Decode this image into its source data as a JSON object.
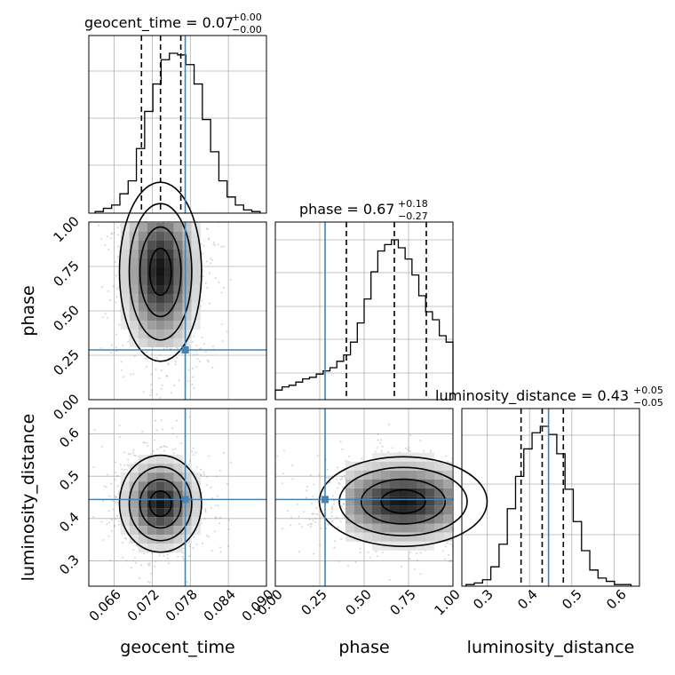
{
  "chart_data": {
    "type": "corner",
    "parameters": [
      "geocent_time",
      "phase",
      "luminosity_distance"
    ],
    "titles": [
      {
        "text": "geocent_time = 0.07",
        "plus": "+0.00",
        "minus": "−0.00"
      },
      {
        "text": "phase = 0.67",
        "plus": "+0.18",
        "minus": "−0.27"
      },
      {
        "text": "luminosity_distance = 0.43",
        "plus": "+0.05",
        "minus": "−0.05"
      }
    ],
    "ranges": {
      "geocent_time": [
        0.062,
        0.09
      ],
      "phase": [
        0.0,
        1.0
      ],
      "luminosity_distance": [
        0.24,
        0.66
      ]
    },
    "ticks": {
      "geocent_time": [
        "0.066",
        "0.072",
        "0.078",
        "0.084",
        "0.090"
      ],
      "phase_x": [
        "0.00",
        "0.25",
        "0.50",
        "0.75",
        "1.00"
      ],
      "phase_y": [
        "0.00",
        "0.25",
        "0.50",
        "0.75",
        "1.00"
      ],
      "luminosity_distance_x": [
        "0.3",
        "0.4",
        "0.5",
        "0.6"
      ],
      "luminosity_distance_y": [
        "0.3",
        "0.4",
        "0.5",
        "0.6"
      ]
    },
    "truths": {
      "geocent_time": 0.0772,
      "phase": 0.28,
      "luminosity_distance": 0.445
    },
    "quantiles": {
      "geocent_time": [
        0.0703,
        0.0733,
        0.0765
      ],
      "phase": [
        0.4,
        0.67,
        0.85
      ],
      "luminosity_distance": [
        0.38,
        0.43,
        0.48
      ]
    },
    "histograms": {
      "geocent_time": [
        1,
        3,
        5,
        12,
        20,
        40,
        63,
        80,
        95,
        99,
        98,
        92,
        80,
        58,
        38,
        20,
        10,
        5,
        2,
        1
      ],
      "phase": [
        6,
        8,
        9,
        11,
        13,
        14,
        16,
        18,
        20,
        24,
        28,
        36,
        48,
        63,
        80,
        93,
        97,
        100,
        95,
        88,
        78,
        65,
        55,
        50,
        40,
        36
      ],
      "luminosity_distance": [
        1,
        2,
        4,
        12,
        26,
        48,
        68,
        85,
        95,
        99,
        94,
        82,
        60,
        40,
        22,
        10,
        5,
        3,
        1,
        1
      ]
    },
    "posterior_centers": {
      "phase_vs_geocent_time": {
        "x": 0.0733,
        "y": 0.72
      },
      "luminosity_distance_vs_geocent_time": {
        "x": 0.0733,
        "y": 0.435
      },
      "luminosity_distance_vs_phase": {
        "x": 0.72,
        "y": 0.44
      }
    },
    "line_color": "#4682b4"
  }
}
